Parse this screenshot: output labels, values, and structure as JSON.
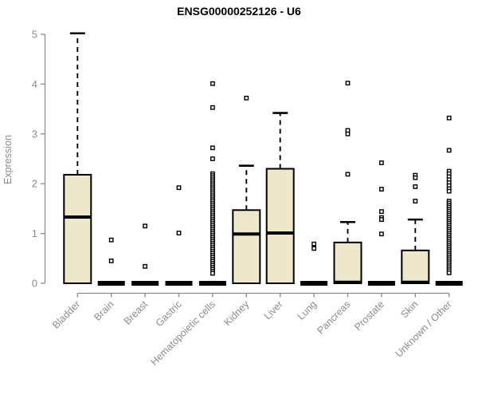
{
  "chart_data": {
    "type": "boxplot",
    "title": "ENSG00000252126 - U6",
    "ylabel": "Expression",
    "xlabel": "",
    "ylim": [
      0,
      5
    ],
    "yticks": [
      0,
      1,
      2,
      3,
      4,
      5
    ],
    "grid": false,
    "legend": null,
    "categories": [
      "Bladder",
      "Brain",
      "Breast",
      "Gastric",
      "Hematopoietic cells",
      "Kidney",
      "Liver",
      "Lung",
      "Pancreas",
      "Prostate",
      "Skin",
      "Unknown / Other"
    ],
    "boxes": [
      {
        "category": "Bladder",
        "whisker_low": 0,
        "q1": 0,
        "median": 1.33,
        "q3": 2.18,
        "whisker_high": 5.02,
        "outliers": []
      },
      {
        "category": "Brain",
        "whisker_low": 0,
        "q1": 0,
        "median": 0,
        "q3": 0,
        "whisker_high": 0,
        "outliers": [
          0.87,
          0.45
        ]
      },
      {
        "category": "Breast",
        "whisker_low": 0,
        "q1": 0,
        "median": 0,
        "q3": 0,
        "whisker_high": 0,
        "outliers": [
          1.15,
          0.34
        ]
      },
      {
        "category": "Gastric",
        "whisker_low": 0,
        "q1": 0,
        "median": 0,
        "q3": 0,
        "whisker_high": 0,
        "outliers": [
          1.92,
          1.01
        ]
      },
      {
        "category": "Hematopoietic cells",
        "whisker_low": 0,
        "q1": 0,
        "median": 0,
        "q3": 0,
        "whisker_high": 0,
        "outliers": [
          4.01,
          3.53,
          2.72,
          2.5,
          2.2,
          2.16,
          2.12,
          2.08,
          2.04,
          2.0,
          1.96,
          1.92,
          1.88,
          1.84,
          1.8,
          1.76,
          1.72,
          1.68,
          1.64,
          1.6,
          1.56,
          1.52,
          1.48,
          1.44,
          1.4,
          1.36,
          1.32,
          1.28,
          1.24,
          1.2,
          1.16,
          1.12,
          1.08,
          1.04,
          1.0,
          0.96,
          0.92,
          0.88,
          0.84,
          0.8,
          0.76,
          0.72,
          0.68,
          0.64,
          0.6,
          0.56,
          0.52,
          0.48,
          0.44,
          0.4,
          0.36,
          0.32,
          0.28,
          0.24,
          0.2
        ]
      },
      {
        "category": "Kidney",
        "whisker_low": 0,
        "q1": 0,
        "median": 0.99,
        "q3": 1.47,
        "whisker_high": 2.36,
        "outliers": [
          3.72
        ]
      },
      {
        "category": "Liver",
        "whisker_low": 0,
        "q1": 0,
        "median": 1.01,
        "q3": 2.3,
        "whisker_high": 3.42,
        "outliers": []
      },
      {
        "category": "Lung",
        "whisker_low": 0,
        "q1": 0,
        "median": 0,
        "q3": 0,
        "whisker_high": 0,
        "outliers": [
          0.79,
          0.7
        ]
      },
      {
        "category": "Pancreas",
        "whisker_low": 0,
        "q1": 0,
        "median": 0.02,
        "q3": 0.82,
        "whisker_high": 1.23,
        "outliers": [
          4.02,
          3.07,
          3.0,
          2.19
        ]
      },
      {
        "category": "Prostate",
        "whisker_low": 0,
        "q1": 0,
        "median": 0,
        "q3": 0,
        "whisker_high": 0,
        "outliers": [
          2.42,
          1.89,
          1.44,
          1.32,
          1.28,
          0.99
        ]
      },
      {
        "category": "Skin",
        "whisker_low": 0,
        "q1": 0,
        "median": 0.02,
        "q3": 0.66,
        "whisker_high": 1.28,
        "outliers": [
          2.17,
          2.12,
          1.94,
          1.65
        ]
      },
      {
        "category": "Unknown / Other",
        "whisker_low": 0,
        "q1": 0,
        "median": 0,
        "q3": 0,
        "whisker_high": 0,
        "outliers": [
          3.32,
          2.67,
          2.25,
          2.2,
          2.14,
          2.08,
          2.02,
          1.96,
          1.9,
          1.85,
          1.65,
          1.61,
          1.57,
          1.53,
          1.49,
          1.45,
          1.41,
          1.37,
          1.33,
          1.29,
          1.25,
          1.21,
          1.17,
          1.13,
          1.09,
          1.05,
          1.01,
          0.97,
          0.93,
          0.89,
          0.85,
          0.81,
          0.77,
          0.73,
          0.69,
          0.65,
          0.61,
          0.57,
          0.53,
          0.49,
          0.45,
          0.41,
          0.37,
          0.33,
          0.29,
          0.25,
          0.21
        ]
      }
    ],
    "colors": {
      "background": "#FFFFFF",
      "box_fill": "#EDE7CB",
      "box_border": "#000000",
      "median": "#000000",
      "whisker": "#000000",
      "outlier_stroke": "#000000",
      "outlier_fill": "#FFFFFF",
      "axis": "#8C8C8C",
      "tick_label": "#8C8C8C",
      "title": "#000000"
    }
  }
}
